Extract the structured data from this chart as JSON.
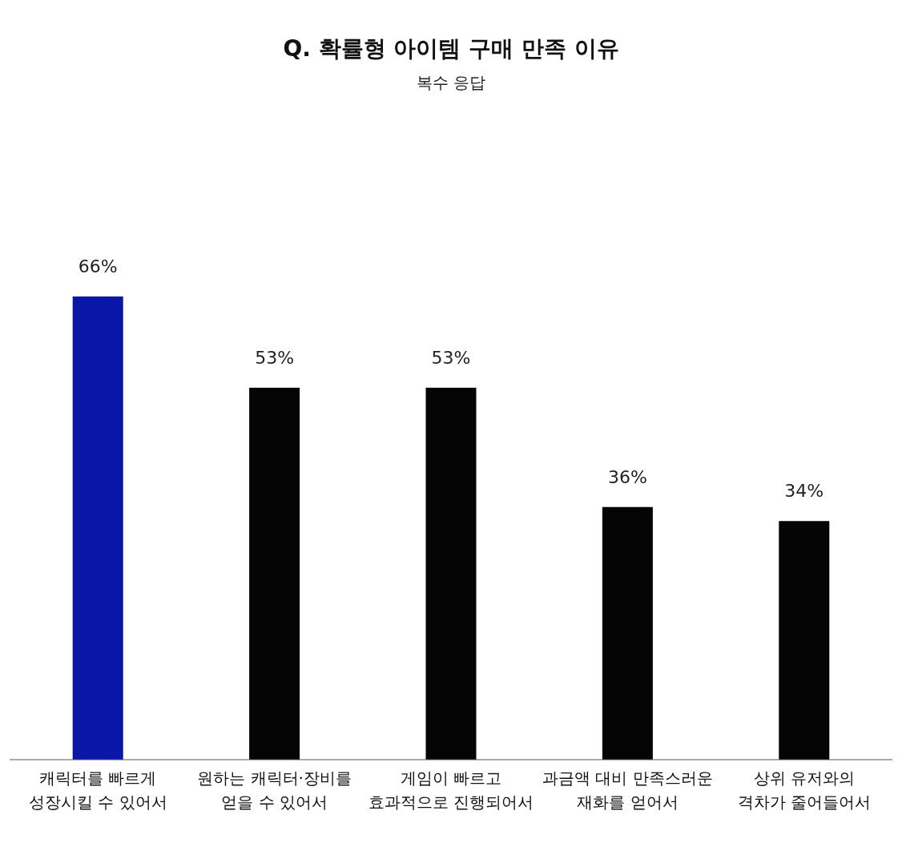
{
  "chart_data": {
    "type": "bar",
    "title": "Q. 확률형 아이템 구매 만족 이유",
    "subtitle": "복수 응답",
    "categories": [
      "캐릭터를 빠르게\n성장시킬 수 있어서",
      "원하는 캐릭터·장비를\n얻을 수 있어서",
      "게임이 빠르고\n효과적으로 진행되어서",
      "과금액 대비 만족스러운\n재화를 얻어서",
      "상위 유저와의\n격차가 줄어들어서"
    ],
    "values": [
      66,
      53,
      53,
      36,
      34
    ],
    "value_labels": [
      "66%",
      "53%",
      "53%",
      "36%",
      "34%"
    ],
    "colors": [
      "#0a16a8",
      "#050505",
      "#050505",
      "#050505",
      "#050505"
    ]
  }
}
